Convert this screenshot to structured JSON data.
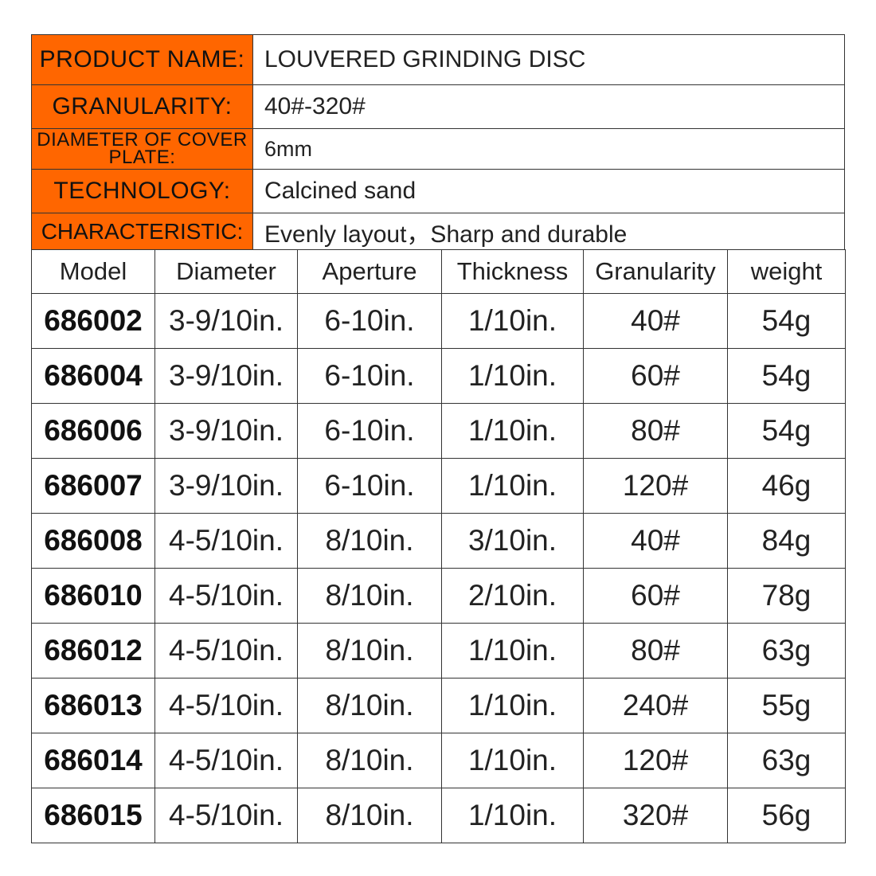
{
  "specs": [
    {
      "label": "PRODUCT NAME:",
      "value": "LOUVERED GRINDING DISC"
    },
    {
      "label": "GRANULARITY:",
      "value": "40#-320#"
    },
    {
      "label": "DIAMETER OF COVER PLATE:",
      "value": "6mm"
    },
    {
      "label": "TECHNOLOGY:",
      "value": "Calcined sand"
    },
    {
      "label": "CHARACTERISTIC:",
      "value": "Evenly layout，Sharp and durable"
    }
  ],
  "table": {
    "headers": [
      "Model",
      "Diameter",
      "Aperture",
      "Thickness",
      "Granularity",
      "weight"
    ],
    "rows": [
      [
        "686002",
        "3-9/10in.",
        "6-10in.",
        "1/10in.",
        "40#",
        "54g"
      ],
      [
        "686004",
        "3-9/10in.",
        "6-10in.",
        "1/10in.",
        "60#",
        "54g"
      ],
      [
        "686006",
        "3-9/10in.",
        "6-10in.",
        "1/10in.",
        "80#",
        "54g"
      ],
      [
        "686007",
        "3-9/10in.",
        "6-10in.",
        "1/10in.",
        "120#",
        "46g"
      ],
      [
        "686008",
        "4-5/10in.",
        "8/10in.",
        "3/10in.",
        "40#",
        "84g"
      ],
      [
        "686010",
        "4-5/10in.",
        "8/10in.",
        "2/10in.",
        "60#",
        "78g"
      ],
      [
        "686012",
        "4-5/10in.",
        "8/10in.",
        "1/10in.",
        "80#",
        "63g"
      ],
      [
        "686013",
        "4-5/10in.",
        "8/10in.",
        "1/10in.",
        "240#",
        "55g"
      ],
      [
        "686014",
        "4-5/10in.",
        "8/10in.",
        "1/10in.",
        "120#",
        "63g"
      ],
      [
        "686015",
        "4-5/10in.",
        "8/10in.",
        "1/10in.",
        "320#",
        "56g"
      ]
    ]
  },
  "colors": {
    "label_background": "#FF6600",
    "border": "#333333"
  }
}
